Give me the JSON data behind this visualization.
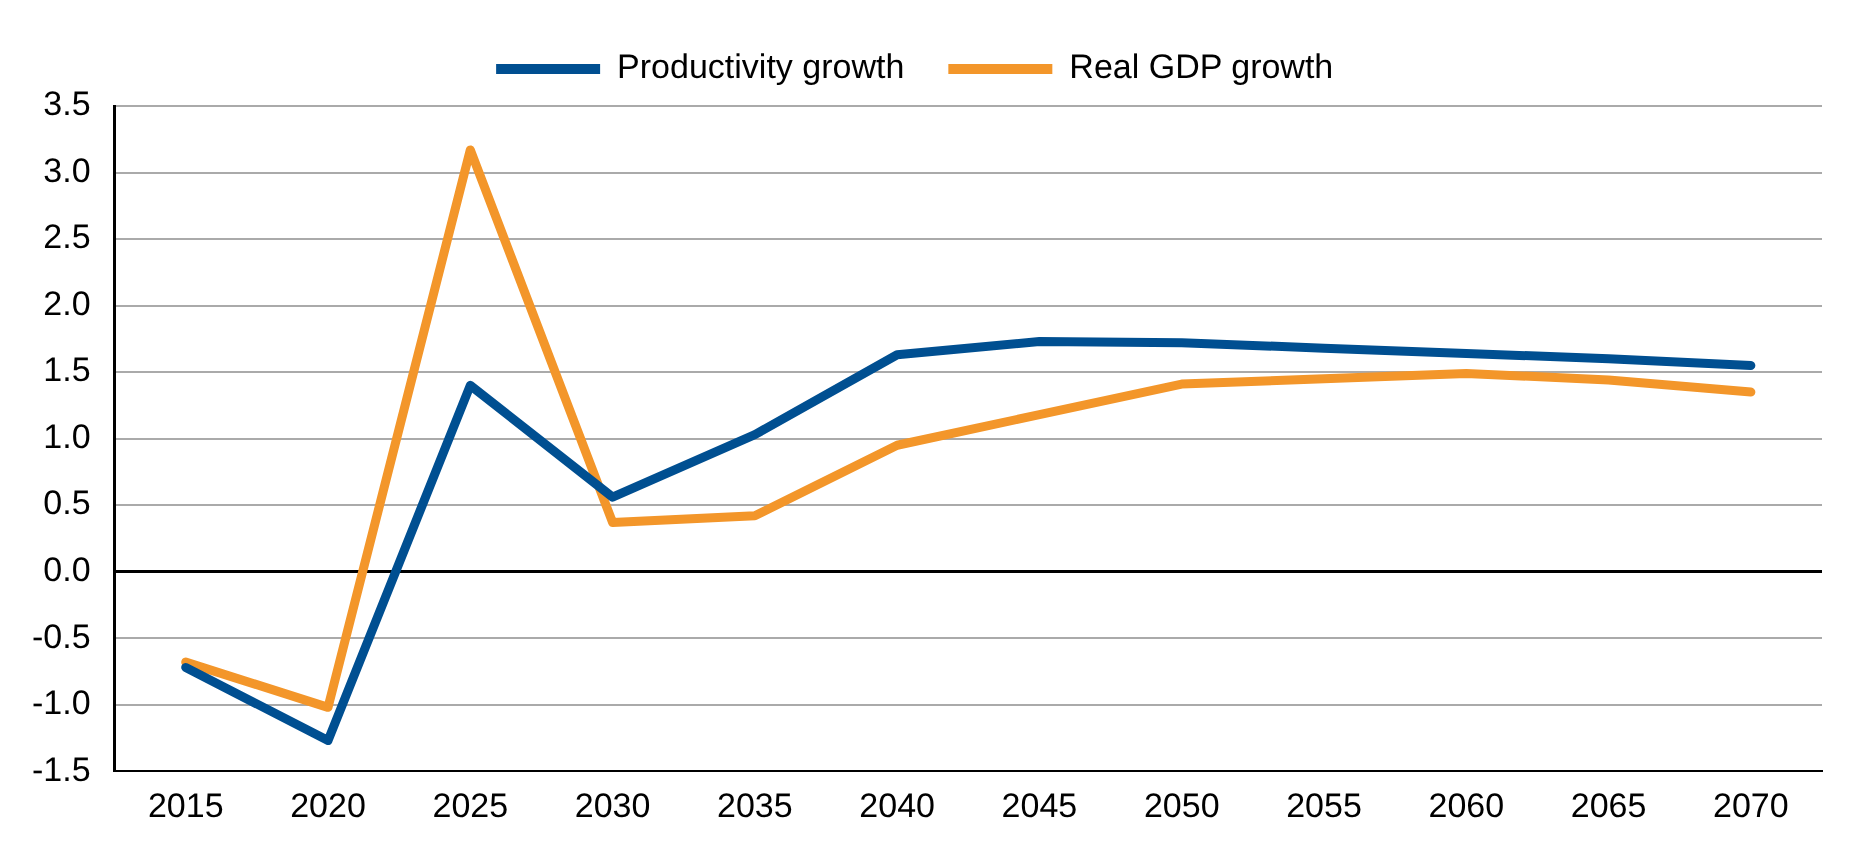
{
  "chart_data": {
    "type": "line",
    "categories": [
      "2015",
      "2020",
      "2025",
      "2030",
      "2035",
      "2040",
      "2045",
      "2050",
      "2055",
      "2060",
      "2065",
      "2070"
    ],
    "series": [
      {
        "name": "Productivity growth",
        "color": "#004f91",
        "values": [
          -0.72,
          -1.27,
          1.4,
          0.56,
          1.03,
          1.63,
          1.73,
          1.72,
          1.68,
          1.64,
          1.6,
          1.55
        ]
      },
      {
        "name": "Real GDP growth",
        "color": "#f3962a",
        "values": [
          -0.68,
          -1.02,
          3.17,
          0.37,
          0.42,
          0.95,
          1.18,
          1.41,
          1.45,
          1.49,
          1.44,
          1.35
        ]
      }
    ],
    "ylim": [
      -1.5,
      3.5
    ],
    "yticks": [
      {
        "value": -1.5,
        "label": "-1.5"
      },
      {
        "value": -1,
        "label": "-1.0"
      },
      {
        "value": -0.5,
        "label": "-0.5"
      },
      {
        "value": 0,
        "label": "0.0"
      },
      {
        "value": 0.5,
        "label": "0.5"
      },
      {
        "value": 1,
        "label": "1.0"
      },
      {
        "value": 1.5,
        "label": "1.5"
      },
      {
        "value": 2,
        "label": "2.0"
      },
      {
        "value": 2.5,
        "label": "2.5"
      },
      {
        "value": 3,
        "label": "3.0"
      },
      {
        "value": 3.5,
        "label": "3.5"
      }
    ],
    "grid": "y",
    "legend": "top",
    "marker": "none",
    "line_style": "solid"
  }
}
